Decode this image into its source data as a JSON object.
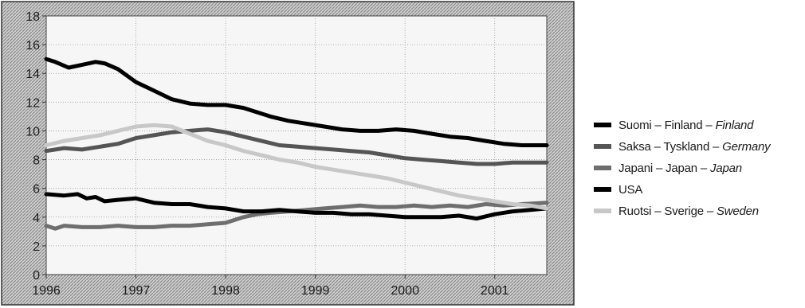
{
  "chart_data": {
    "type": "line",
    "title": "",
    "xlabel": "",
    "ylabel": "",
    "xlim": [
      1996,
      2001.58
    ],
    "ylim": [
      0,
      18
    ],
    "grid": true,
    "legend_position": "right",
    "x_ticks": [
      {
        "value": 1996,
        "label": "1996"
      },
      {
        "value": 1997,
        "label": "1997"
      },
      {
        "value": 1998,
        "label": "1998"
      },
      {
        "value": 1999,
        "label": "1999"
      },
      {
        "value": 2000,
        "label": "2000"
      },
      {
        "value": 2001,
        "label": "2001"
      }
    ],
    "y_ticks": [
      {
        "value": 0,
        "label": "0"
      },
      {
        "value": 2,
        "label": "2"
      },
      {
        "value": 4,
        "label": "4"
      },
      {
        "value": 6,
        "label": "6"
      },
      {
        "value": 8,
        "label": "8"
      },
      {
        "value": 10,
        "label": "10"
      },
      {
        "value": 12,
        "label": "12"
      },
      {
        "value": 14,
        "label": "14"
      },
      {
        "value": 16,
        "label": "16"
      },
      {
        "value": 18,
        "label": "18"
      }
    ],
    "series": [
      {
        "name": "Suomi – Finland – Finland",
        "label_plain": "Suomi – Finland – ",
        "label_italic": "Finland",
        "color": "#000000",
        "x": [
          1996,
          1996.1,
          1996.25,
          1996.4,
          1996.55,
          1996.65,
          1996.8,
          1997.0,
          1997.2,
          1997.4,
          1997.6,
          1997.8,
          1998.0,
          1998.2,
          1998.35,
          1998.5,
          1998.7,
          1998.9,
          1999.1,
          1999.3,
          1999.5,
          1999.7,
          1999.9,
          2000.1,
          2000.3,
          2000.5,
          2000.7,
          2000.9,
          2001.1,
          2001.3,
          2001.58
        ],
        "y": [
          15.0,
          14.8,
          14.4,
          14.6,
          14.8,
          14.7,
          14.3,
          13.4,
          12.8,
          12.2,
          11.9,
          11.8,
          11.8,
          11.6,
          11.3,
          11.0,
          10.7,
          10.5,
          10.3,
          10.1,
          10.0,
          10.0,
          10.1,
          10.0,
          9.8,
          9.6,
          9.5,
          9.3,
          9.1,
          9.0,
          9.0
        ]
      },
      {
        "name": "Saksa – Tyskland – Germany",
        "label_plain": "Saksa – Tyskland – ",
        "label_italic": "Germany",
        "color": "#555555",
        "x": [
          1996,
          1996.2,
          1996.4,
          1996.6,
          1996.8,
          1997.0,
          1997.2,
          1997.4,
          1997.6,
          1997.8,
          1998.0,
          1998.2,
          1998.4,
          1998.6,
          1998.8,
          1999.0,
          1999.2,
          1999.4,
          1999.6,
          1999.8,
          2000.0,
          2000.2,
          2000.4,
          2000.6,
          2000.8,
          2001.0,
          2001.2,
          2001.4,
          2001.58
        ],
        "y": [
          8.6,
          8.8,
          8.7,
          8.9,
          9.1,
          9.5,
          9.7,
          9.9,
          10.0,
          10.1,
          9.9,
          9.6,
          9.3,
          9.0,
          8.9,
          8.8,
          8.7,
          8.6,
          8.5,
          8.3,
          8.1,
          8.0,
          7.9,
          7.8,
          7.7,
          7.7,
          7.8,
          7.8,
          7.8
        ]
      },
      {
        "name": "Japani – Japan – Japan",
        "label_plain": "Japani – Japan – ",
        "label_italic": "Japan",
        "color": "#6e6e6e",
        "x": [
          1996,
          1996.1,
          1996.2,
          1996.4,
          1996.6,
          1996.8,
          1997.0,
          1997.2,
          1997.4,
          1997.6,
          1997.8,
          1998.0,
          1998.1,
          1998.2,
          1998.35,
          1998.5,
          1998.7,
          1998.9,
          1999.1,
          1999.3,
          1999.5,
          1999.7,
          1999.9,
          2000.1,
          2000.3,
          2000.5,
          2000.7,
          2000.9,
          2001.1,
          2001.3,
          2001.58
        ],
        "y": [
          3.4,
          3.2,
          3.4,
          3.3,
          3.3,
          3.4,
          3.3,
          3.3,
          3.4,
          3.4,
          3.5,
          3.6,
          3.8,
          4.0,
          4.2,
          4.3,
          4.4,
          4.5,
          4.6,
          4.7,
          4.8,
          4.7,
          4.7,
          4.8,
          4.7,
          4.8,
          4.7,
          4.9,
          4.8,
          4.9,
          5.0
        ]
      },
      {
        "name": "USA",
        "label_plain": "USA",
        "label_italic": "",
        "color": "#000000",
        "x": [
          1996,
          1996.2,
          1996.35,
          1996.45,
          1996.55,
          1996.65,
          1996.8,
          1997.0,
          1997.2,
          1997.4,
          1997.6,
          1997.8,
          1998.0,
          1998.2,
          1998.4,
          1998.6,
          1998.8,
          1999.0,
          1999.2,
          1999.4,
          1999.6,
          1999.8,
          2000.0,
          2000.2,
          2000.4,
          2000.6,
          2000.8,
          2001.0,
          2001.2,
          2001.4,
          2001.58
        ],
        "y": [
          5.6,
          5.5,
          5.6,
          5.3,
          5.4,
          5.1,
          5.2,
          5.3,
          5.0,
          4.9,
          4.9,
          4.7,
          4.6,
          4.4,
          4.4,
          4.5,
          4.4,
          4.3,
          4.3,
          4.2,
          4.2,
          4.1,
          4.0,
          4.0,
          4.0,
          4.1,
          3.9,
          4.2,
          4.4,
          4.5,
          4.6
        ]
      },
      {
        "name": "Ruotsi – Sverige – Sweden",
        "label_plain": "Ruotsi – Sverige – ",
        "label_italic": "Sweden",
        "color": "#c8c8c8",
        "x": [
          1996,
          1996.2,
          1996.4,
          1996.6,
          1996.8,
          1997.0,
          1997.2,
          1997.4,
          1997.6,
          1997.8,
          1998.0,
          1998.2,
          1998.4,
          1998.6,
          1998.8,
          1999.0,
          1999.2,
          1999.4,
          1999.6,
          1999.8,
          2000.0,
          2000.2,
          2000.4,
          2000.6,
          2000.8,
          2001.0,
          2001.2,
          2001.4,
          2001.58
        ],
        "y": [
          9.0,
          9.3,
          9.5,
          9.7,
          10.0,
          10.3,
          10.4,
          10.3,
          9.8,
          9.3,
          9.0,
          8.6,
          8.3,
          8.0,
          7.8,
          7.5,
          7.3,
          7.1,
          6.9,
          6.7,
          6.4,
          6.1,
          5.8,
          5.5,
          5.3,
          5.1,
          4.9,
          4.8,
          4.6
        ]
      }
    ]
  }
}
